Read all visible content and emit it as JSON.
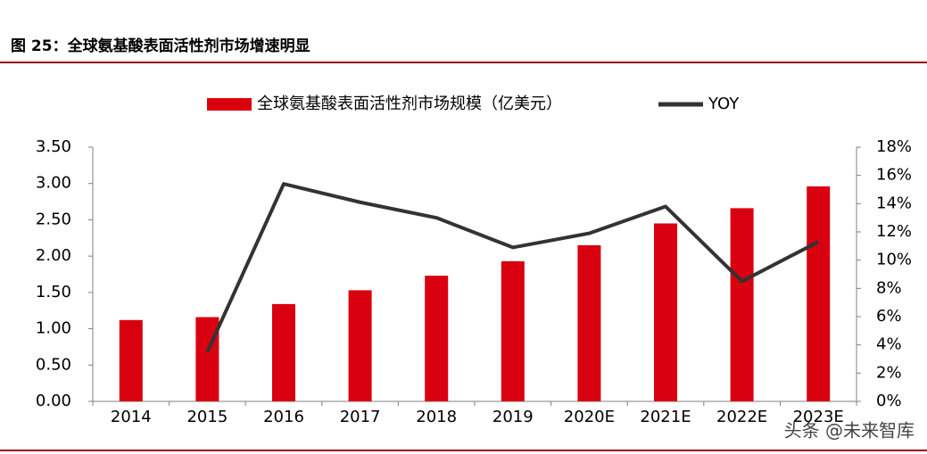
{
  "chart_data": {
    "type": "bar_line",
    "title": "图 25：全球氨基酸表面活性剂市场增速明显",
    "watermark": "头条 @未来智库",
    "categories": [
      "2014",
      "2015",
      "2016",
      "2017",
      "2018",
      "2019",
      "2020E",
      "2021E",
      "2022E",
      "2023E"
    ],
    "series": [
      {
        "name": "全球氨基酸表面活性剂市场规模（亿美元）",
        "type": "bar",
        "color": "#d9000f",
        "values": [
          1.12,
          1.16,
          1.34,
          1.53,
          1.73,
          1.93,
          2.15,
          2.45,
          2.66,
          2.96
        ]
      },
      {
        "name": "YOY",
        "type": "line",
        "axis": "y2",
        "color": "#333333",
        "values": [
          null,
          3.5,
          15.4,
          14.1,
          13.0,
          10.9,
          11.9,
          13.8,
          8.5,
          11.3
        ]
      }
    ],
    "ylim": [
      0,
      3.5
    ],
    "yticks": [
      {
        "value": 0,
        "label": "0.00"
      },
      {
        "value": 0.5,
        "label": "0.50"
      },
      {
        "value": 1,
        "label": "1.00"
      },
      {
        "value": 1.5,
        "label": "1.50"
      },
      {
        "value": 2,
        "label": "2.00"
      },
      {
        "value": 2.5,
        "label": "2.50"
      },
      {
        "value": 3,
        "label": "3.00"
      },
      {
        "value": 3.5,
        "label": "3.50"
      }
    ],
    "y2lim": [
      0,
      18
    ],
    "y2ticks": [
      {
        "value": 0,
        "label": "0%"
      },
      {
        "value": 2,
        "label": "2%"
      },
      {
        "value": 4,
        "label": "4%"
      },
      {
        "value": 6,
        "label": "6%"
      },
      {
        "value": 8,
        "label": "8%"
      },
      {
        "value": 10,
        "label": "10%"
      },
      {
        "value": 12,
        "label": "12%"
      },
      {
        "value": 14,
        "label": "14%"
      },
      {
        "value": 16,
        "label": "16%"
      },
      {
        "value": 18,
        "label": "18%"
      }
    ],
    "legend": "top"
  }
}
